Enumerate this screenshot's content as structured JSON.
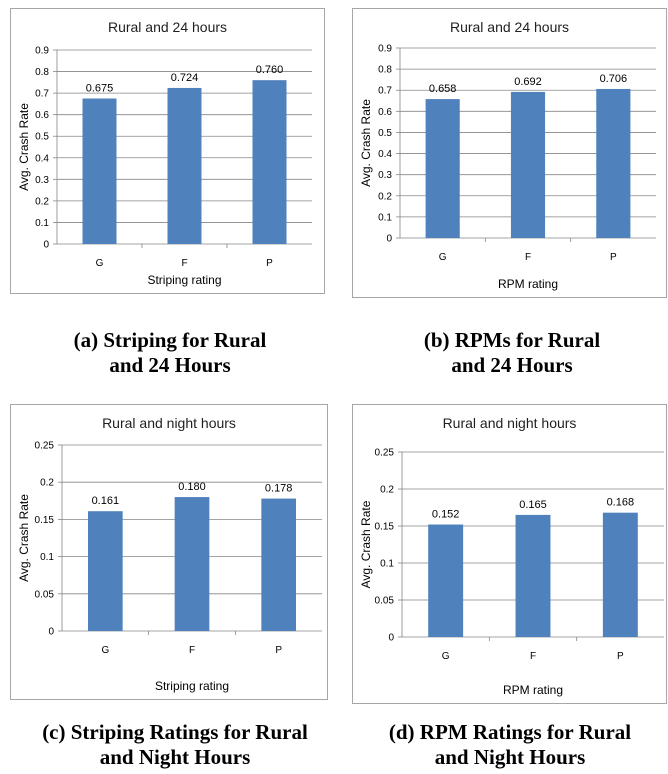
{
  "chart_data": [
    {
      "type": "bar",
      "title": "Rural and 24 hours",
      "xlabel": "Striping rating",
      "ylabel": "Avg. Crash Rate",
      "categories": [
        "G",
        "F",
        "P"
      ],
      "values": [
        0.675,
        0.724,
        0.76
      ],
      "value_labels": [
        "0.675",
        "0.724",
        "0.760"
      ],
      "ylim": [
        0,
        0.9
      ],
      "yticks": [
        "0",
        "0.1",
        "0.2",
        "0.3",
        "0.4",
        "0.5",
        "0.6",
        "0.7",
        "0.8",
        "0.9"
      ],
      "grid": true,
      "caption": "(a) Striping for Rural\nand 24 Hours"
    },
    {
      "type": "bar",
      "title": "Rural and 24 hours",
      "xlabel": "RPM rating",
      "ylabel": "Avg. Crash Rate",
      "categories": [
        "G",
        "F",
        "P"
      ],
      "values": [
        0.658,
        0.692,
        0.706
      ],
      "value_labels": [
        "0.658",
        "0.692",
        "0.706"
      ],
      "ylim": [
        0,
        0.9
      ],
      "yticks": [
        "0",
        "0.1",
        "0.2",
        "0.3",
        "0.4",
        "0.5",
        "0.6",
        "0.7",
        "0.8",
        "0.9"
      ],
      "grid": true,
      "caption": "(b) RPMs for Rural\nand 24 Hours"
    },
    {
      "type": "bar",
      "title": "Rural and night hours",
      "xlabel": "Striping rating",
      "ylabel": "Avg. Crash Rate",
      "categories": [
        "G",
        "F",
        "P"
      ],
      "values": [
        0.161,
        0.18,
        0.178
      ],
      "value_labels": [
        "0.161",
        "0.180",
        "0.178"
      ],
      "ylim": [
        0,
        0.25
      ],
      "yticks": [
        "0",
        "0.05",
        "0.1",
        "0.15",
        "0.2",
        "0.25"
      ],
      "grid": true,
      "caption": "(c) Striping Ratings for Rural\nand Night Hours"
    },
    {
      "type": "bar",
      "title": "Rural  and night hours",
      "xlabel": "RPM rating",
      "ylabel": "Avg. Crash Rate",
      "categories": [
        "G",
        "F",
        "P"
      ],
      "values": [
        0.152,
        0.165,
        0.168
      ],
      "value_labels": [
        "0.152",
        "0.165",
        "0.168"
      ],
      "ylim": [
        0,
        0.25
      ],
      "yticks": [
        "0",
        "0.05",
        "0.1",
        "0.15",
        "0.2",
        "0.25"
      ],
      "grid": true,
      "caption": "(d) RPM Ratings for Rural\nand Night Hours"
    }
  ],
  "colors": {
    "bar": "#4f81bd",
    "grid": "#868686",
    "axis": "#868686"
  }
}
